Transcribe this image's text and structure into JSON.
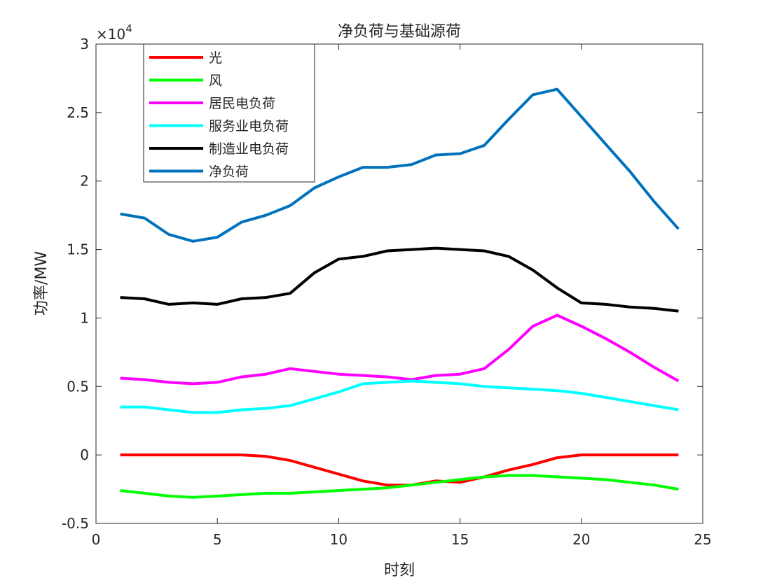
{
  "chart_data": {
    "type": "line",
    "title": "净负荷与基础源荷",
    "xlabel": "时刻",
    "ylabel": "功率/MW",
    "exponent_label": "×10",
    "exponent_power": "4",
    "xlim": [
      0,
      25
    ],
    "ylim": [
      -0.5,
      3
    ],
    "xticks": [
      0,
      5,
      10,
      15,
      20,
      25
    ],
    "yticks": [
      -0.5,
      0,
      0.5,
      1,
      1.5,
      2,
      2.5,
      3
    ],
    "xtick_labels": [
      "0",
      "5",
      "10",
      "15",
      "20",
      "25"
    ],
    "ytick_labels": [
      "-0.5",
      "0",
      "0.5",
      "1",
      "1.5",
      "2",
      "2.5",
      "3"
    ],
    "grid": false,
    "legend_position": "top-left",
    "x": [
      1,
      2,
      3,
      4,
      5,
      6,
      7,
      8,
      9,
      10,
      11,
      12,
      13,
      14,
      15,
      16,
      17,
      18,
      19,
      20,
      21,
      22,
      23,
      24
    ],
    "series": [
      {
        "name": "光",
        "color": "#ff0000",
        "values": [
          0,
          0,
          0,
          0,
          0,
          0,
          -0.01,
          -0.04,
          -0.09,
          -0.14,
          -0.19,
          -0.22,
          -0.22,
          -0.19,
          -0.2,
          -0.16,
          -0.11,
          -0.07,
          -0.02,
          0,
          0,
          0,
          0,
          0
        ]
      },
      {
        "name": "风",
        "color": "#00ff00",
        "values": [
          -0.26,
          -0.28,
          -0.3,
          -0.31,
          -0.3,
          -0.29,
          -0.28,
          -0.28,
          -0.27,
          -0.26,
          -0.25,
          -0.24,
          -0.22,
          -0.2,
          -0.18,
          -0.16,
          -0.15,
          -0.15,
          -0.16,
          -0.17,
          -0.18,
          -0.2,
          -0.22,
          -0.25
        ]
      },
      {
        "name": "居民电负荷",
        "color": "#ff00ff",
        "values": [
          0.56,
          0.55,
          0.53,
          0.52,
          0.53,
          0.57,
          0.59,
          0.63,
          0.61,
          0.59,
          0.58,
          0.57,
          0.55,
          0.58,
          0.59,
          0.63,
          0.77,
          0.94,
          1.02,
          0.94,
          0.85,
          0.75,
          0.64,
          0.54
        ]
      },
      {
        "name": "服务业电负荷",
        "color": "#00ffff",
        "values": [
          0.35,
          0.35,
          0.33,
          0.31,
          0.31,
          0.33,
          0.34,
          0.36,
          0.41,
          0.46,
          0.52,
          0.53,
          0.54,
          0.53,
          0.52,
          0.5,
          0.49,
          0.48,
          0.47,
          0.45,
          0.42,
          0.39,
          0.36,
          0.33
        ]
      },
      {
        "name": "制造业电负荷",
        "color": "#000000",
        "values": [
          1.15,
          1.14,
          1.1,
          1.11,
          1.1,
          1.14,
          1.15,
          1.18,
          1.33,
          1.43,
          1.45,
          1.49,
          1.5,
          1.51,
          1.5,
          1.49,
          1.45,
          1.35,
          1.22,
          1.11,
          1.1,
          1.08,
          1.07,
          1.05
        ]
      },
      {
        "name": "净负荷",
        "color": "#0072bd",
        "values": [
          1.76,
          1.73,
          1.61,
          1.56,
          1.59,
          1.7,
          1.75,
          1.82,
          1.95,
          2.03,
          2.1,
          2.1,
          2.12,
          2.19,
          2.2,
          2.26,
          2.45,
          2.63,
          2.67,
          2.47,
          2.27,
          2.07,
          1.85,
          1.65
        ]
      }
    ]
  }
}
